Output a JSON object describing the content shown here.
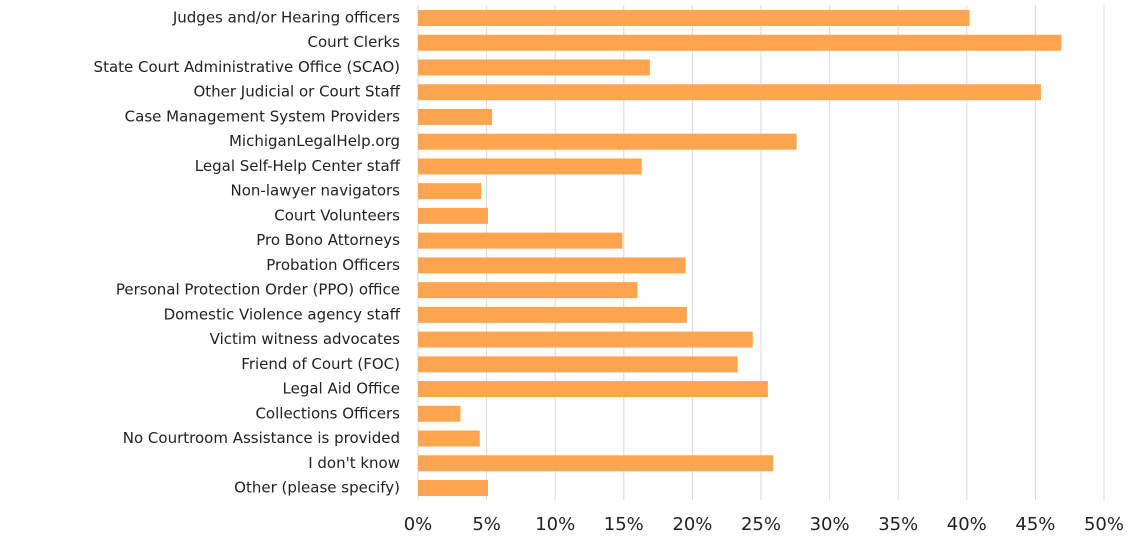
{
  "chart_data": {
    "type": "barh",
    "color": "#ffa54f",
    "grid": true,
    "categories": [
      "Judges and/or Hearing officers",
      "Court Clerks",
      "State Court Administrative Office (SCAO)",
      "Other Judicial or Court Staff",
      "Case Management System Providers",
      "MichiganLegalHelp.org",
      "Legal Self-Help Center staff",
      "Non-lawyer navigators",
      "Court Volunteers",
      "Pro Bono Attorneys",
      "Probation Officers",
      "Personal Protection Order (PPO) office",
      "Domestic Violence agency staff",
      "Victim witness advocates",
      "Friend of Court (FOC)",
      "Legal Aid Office",
      "Collections Officers",
      "No Courtroom Assistance is provided",
      "I don't know",
      "Other (please specify)"
    ],
    "values": [
      40.2,
      46.9,
      16.9,
      45.4,
      5.4,
      27.6,
      16.3,
      4.6,
      5.1,
      14.9,
      19.5,
      16.0,
      19.6,
      24.4,
      23.3,
      25.5,
      3.1,
      4.5,
      25.9,
      5.1
    ],
    "xlim": [
      0,
      50
    ],
    "xticks": [
      {
        "value": 0,
        "label": "0%"
      },
      {
        "value": 5,
        "label": "5%"
      },
      {
        "value": 10,
        "label": "10%"
      },
      {
        "value": 15,
        "label": "15%"
      },
      {
        "value": 20,
        "label": "20%"
      },
      {
        "value": 25,
        "label": "25%"
      },
      {
        "value": 30,
        "label": "30%"
      },
      {
        "value": 35,
        "label": "35%"
      },
      {
        "value": 40,
        "label": "40%"
      },
      {
        "value": 45,
        "label": "45%"
      },
      {
        "value": 50,
        "label": "50%"
      }
    ]
  }
}
